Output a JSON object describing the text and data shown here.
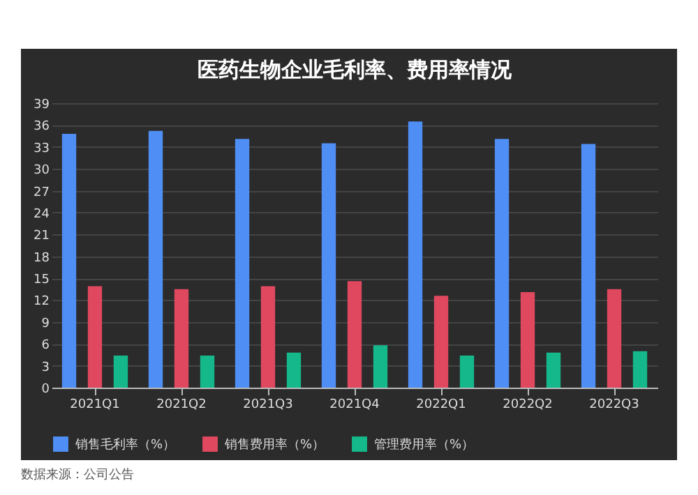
{
  "chart_data": {
    "type": "bar",
    "title": "医药生物企业毛利率、费用率情况",
    "categories": [
      "2021Q1",
      "2021Q2",
      "2021Q3",
      "2021Q4",
      "2022Q1",
      "2022Q2",
      "2022Q3"
    ],
    "series": [
      {
        "name": "销售毛利率（%）",
        "color": "#4f8ef5",
        "values": [
          34.8,
          35.2,
          34.1,
          33.5,
          36.5,
          34.1,
          33.4
        ]
      },
      {
        "name": "销售费用率（%）",
        "color": "#e0485f",
        "values": [
          13.9,
          13.5,
          13.9,
          14.6,
          12.6,
          13.1,
          13.5
        ]
      },
      {
        "name": "管理费用率（%）",
        "color": "#14b88a",
        "values": [
          4.4,
          4.4,
          4.8,
          5.8,
          4.4,
          4.8,
          5.0
        ]
      }
    ],
    "ylim": [
      0,
      39
    ],
    "yticks": [
      0,
      3,
      6,
      9,
      12,
      15,
      18,
      21,
      24,
      27,
      30,
      33,
      36,
      39
    ],
    "grid": "y",
    "legend": "bottom",
    "annotations": [
      "数据来源：公司公告"
    ]
  }
}
